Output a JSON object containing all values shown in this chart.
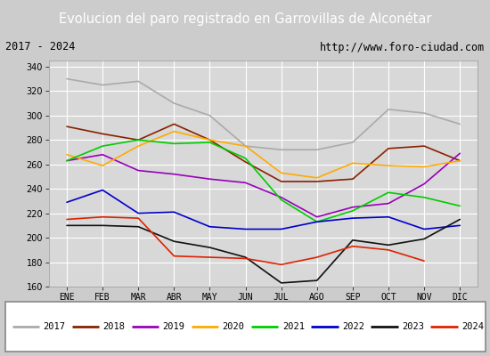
{
  "title": "Evolucion del paro registrado en Garrovillas de Alconétar",
  "subtitle_left": "2017 - 2024",
  "subtitle_right": "http://www.foro-ciudad.com",
  "months": [
    "ENE",
    "FEB",
    "MAR",
    "ABR",
    "MAY",
    "JUN",
    "JUL",
    "AGO",
    "SEP",
    "OCT",
    "NOV",
    "DIC"
  ],
  "ylim": [
    160,
    345
  ],
  "yticks": [
    160,
    180,
    200,
    220,
    240,
    260,
    280,
    300,
    320,
    340
  ],
  "series": {
    "2017": {
      "color": "#aaaaaa",
      "data": [
        330,
        325,
        328,
        310,
        300,
        275,
        272,
        272,
        278,
        305,
        302,
        293
      ]
    },
    "2018": {
      "color": "#882200",
      "data": [
        291,
        285,
        280,
        293,
        280,
        262,
        246,
        246,
        248,
        273,
        275,
        263
      ]
    },
    "2019": {
      "color": "#9900bb",
      "data": [
        263,
        268,
        255,
        252,
        248,
        245,
        233,
        217,
        225,
        228,
        244,
        269
      ]
    },
    "2020": {
      "color": "#ffaa00",
      "data": [
        268,
        259,
        275,
        287,
        280,
        275,
        253,
        249,
        261,
        259,
        258,
        263
      ]
    },
    "2021": {
      "color": "#00cc00",
      "data": [
        263,
        275,
        280,
        277,
        278,
        265,
        231,
        213,
        222,
        237,
        233,
        226
      ]
    },
    "2022": {
      "color": "#0000cc",
      "data": [
        229,
        239,
        220,
        221,
        209,
        207,
        207,
        213,
        216,
        217,
        207,
        210
      ]
    },
    "2023": {
      "color": "#111111",
      "data": [
        210,
        210,
        209,
        197,
        192,
        184,
        163,
        165,
        198,
        194,
        199,
        215
      ]
    },
    "2024": {
      "color": "#dd2200",
      "data": [
        215,
        217,
        216,
        185,
        184,
        183,
        178,
        184,
        193,
        190,
        181,
        null
      ]
    }
  },
  "title_bg": "#4477cc",
  "title_color": "white",
  "subtitle_bg": "#f0f0f0",
  "subtitle_color": "black",
  "plot_bg": "#d8d8d8",
  "grid_color": "white",
  "border_color": "#4477cc",
  "fig_bg": "#cccccc"
}
